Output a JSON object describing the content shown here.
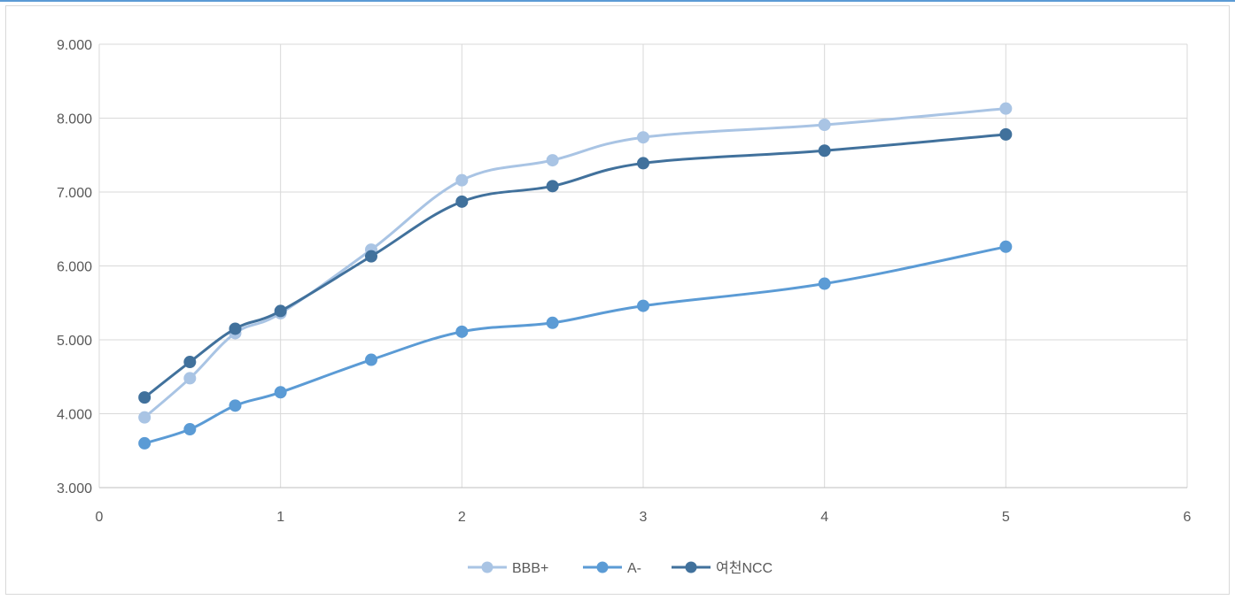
{
  "chart_data": {
    "type": "line",
    "title": "",
    "xlabel": "",
    "ylabel": "",
    "xlim": [
      0,
      6
    ],
    "ylim": [
      3.0,
      9.0
    ],
    "x_ticks": [
      0,
      1,
      2,
      3,
      4,
      5,
      6
    ],
    "x_tick_labels": [
      "0",
      "1",
      "2",
      "3",
      "4",
      "5",
      "6"
    ],
    "y_ticks": [
      3,
      4,
      5,
      6,
      7,
      8,
      9
    ],
    "y_tick_labels": [
      "3.000",
      "4.000",
      "5.000",
      "6.000",
      "7.000",
      "8.000",
      "9.000"
    ],
    "grid": true,
    "legend_position": "bottom",
    "smooth": true,
    "series": [
      {
        "name": "BBB+",
        "color": "#a9c4e4",
        "x": [
          0.25,
          0.5,
          0.75,
          1,
          1.5,
          2,
          2.5,
          3,
          4,
          5
        ],
        "y": [
          3.95,
          4.48,
          5.09,
          5.36,
          6.22,
          7.16,
          7.43,
          7.74,
          7.91,
          8.13
        ]
      },
      {
        "name": "A-",
        "color": "#5b9bd5",
        "x": [
          0.25,
          0.5,
          0.75,
          1,
          1.5,
          2,
          2.5,
          3,
          4,
          5
        ],
        "y": [
          3.6,
          3.79,
          4.11,
          4.29,
          4.73,
          5.11,
          5.23,
          5.46,
          5.76,
          6.26
        ]
      },
      {
        "name": "여천NCC",
        "color": "#41719c",
        "x": [
          0.25,
          0.5,
          0.75,
          1,
          1.5,
          2,
          2.5,
          3,
          4,
          5
        ],
        "y": [
          4.22,
          4.7,
          5.15,
          5.39,
          6.13,
          6.87,
          7.08,
          7.39,
          7.56,
          7.78
        ]
      }
    ]
  }
}
